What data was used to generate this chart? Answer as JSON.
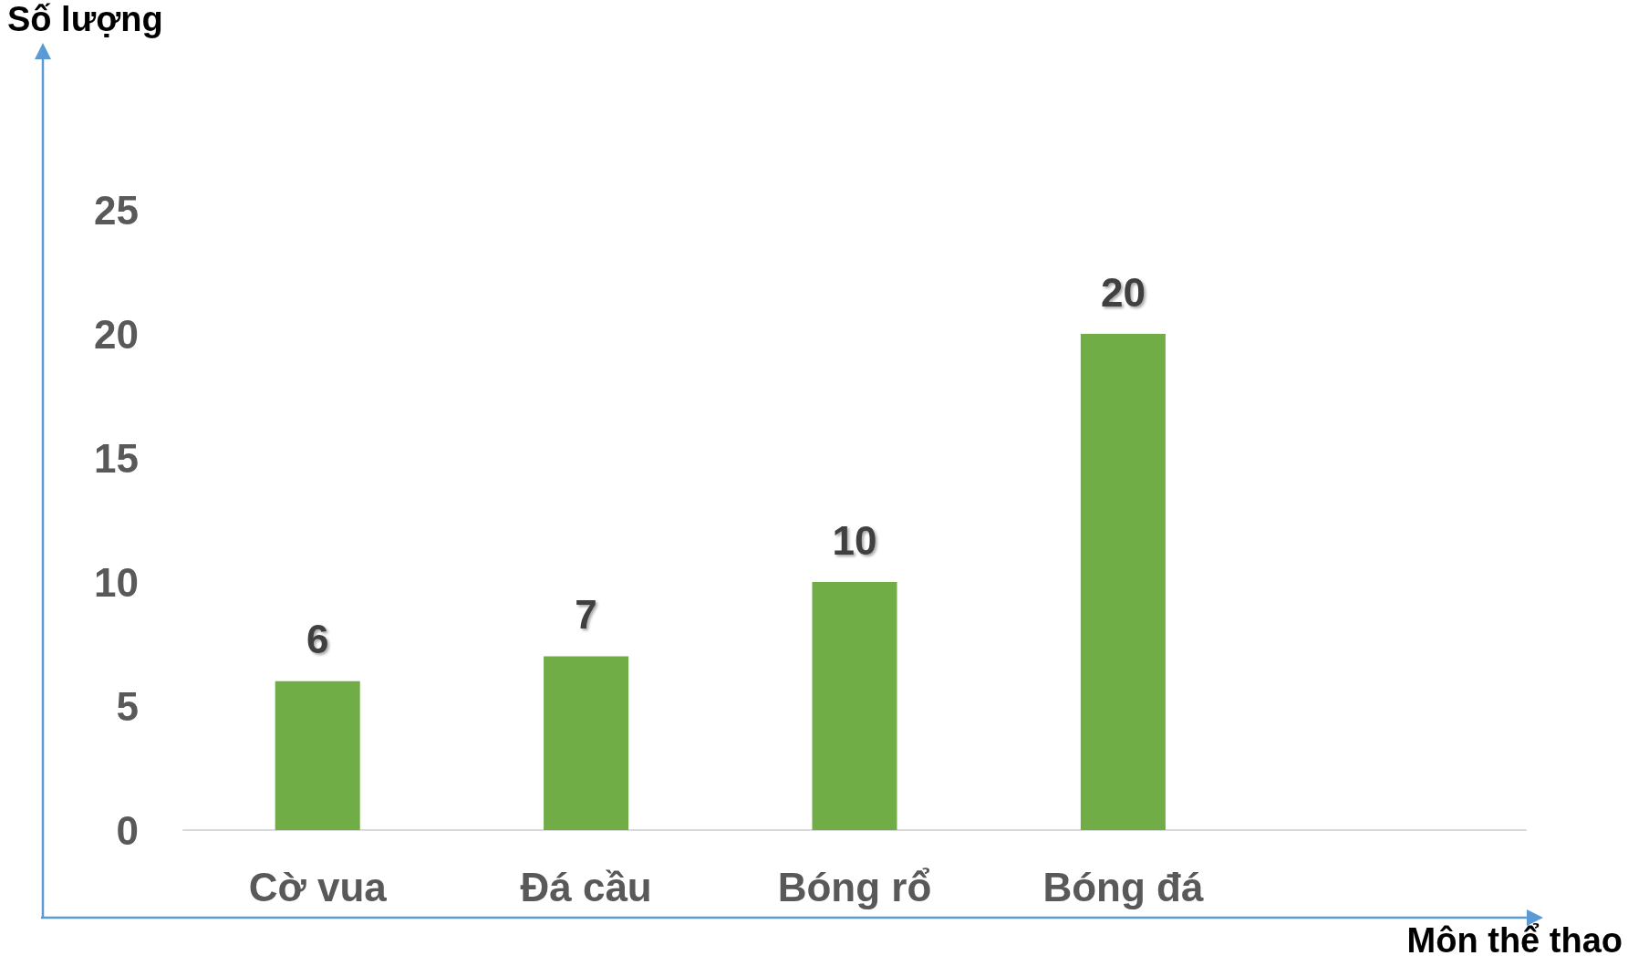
{
  "chart_data": {
    "type": "bar",
    "xlabel": "Môn thể thao",
    "ylabel": "Số lượng",
    "categories": [
      "Cờ vua",
      "Đá cầu",
      "Bóng rổ",
      "Bóng đá",
      null
    ],
    "values": [
      6,
      7,
      10,
      20,
      null
    ],
    "color": "#70ad47",
    "ylim": [
      0,
      25
    ],
    "yticks": [
      0,
      5,
      10,
      15,
      20,
      25
    ],
    "data_labels": true
  }
}
